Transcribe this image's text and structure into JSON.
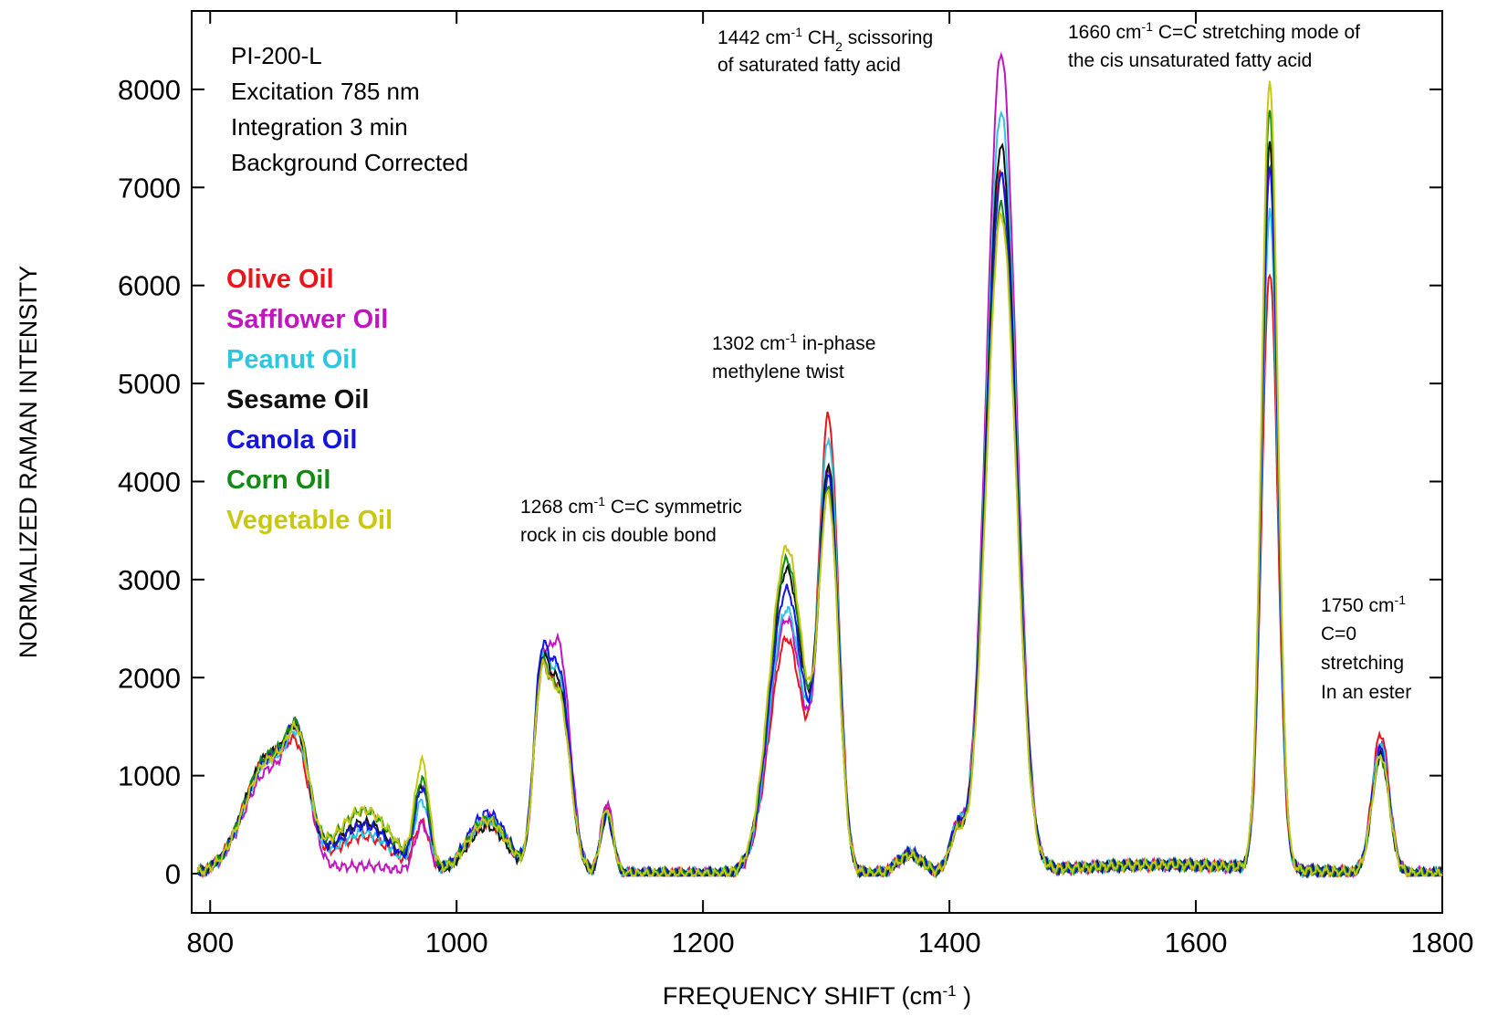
{
  "chart_data": {
    "type": "line",
    "xlabel": "FREQUENCY SHIFT (cm",
    "xlabel_sup": "-1",
    "xlabel_end": " )",
    "ylabel": "NORMALIZED RAMAN INTENSITY",
    "xlim": [
      785,
      1800
    ],
    "ylim": [
      -400,
      8800
    ],
    "xticks": [
      800,
      1000,
      1200,
      1400,
      1600,
      1800
    ],
    "yticks": [
      0,
      1000,
      2000,
      3000,
      4000,
      5000,
      6000,
      7000,
      8000
    ],
    "grid": false,
    "legend_position": "upper-left",
    "info_lines": [
      "PI-200-L",
      "Excitation 785 nm",
      "Integration 3 min",
      "Background Corrected"
    ],
    "annotations": {
      "a1442": {
        "line1_pre": "1442 cm",
        "line1_sup": "-1",
        "line1_mid": " CH",
        "line1_sub": "2",
        "line1_post": " scissoring",
        "line2": "of saturated fatty acid"
      },
      "a1660": {
        "line1_pre": "1660 cm",
        "line1_sup": "-1",
        "line1_post": " C=C stretching mode of",
        "line2": "the cis unsaturated fatty acid"
      },
      "a1302": {
        "line1_pre": "1302 cm",
        "line1_sup": "-1",
        "line1_post": " in-phase",
        "line2": "methylene twist"
      },
      "a1268": {
        "line1_pre": "1268 cm",
        "line1_sup": "-1",
        "line1_post": " C=C symmetric",
        "line2": "rock in cis double bond"
      },
      "a1750": {
        "line1_pre": "1750 cm",
        "line1_sup": "-1",
        "line2": "C=0",
        "line3": "stretching",
        "line4": "In an ester"
      }
    },
    "peak_centers": [
      848,
      872,
      925,
      972,
      1025,
      1068,
      1083,
      1122,
      1268,
      1302,
      1368,
      1406,
      1442,
      1660,
      1750
    ],
    "series": [
      {
        "name": "Olive Oil",
        "color": "#e8151b",
        "values": [
          1200,
          700,
          380,
          480,
          520,
          1550,
          1850,
          700,
          2400,
          4550,
          200,
          400,
          7150,
          6100,
          1420
        ]
      },
      {
        "name": "Safflower Oil",
        "color": "#c016c0",
        "values": [
          1050,
          950,
          80,
          500,
          560,
          1500,
          2300,
          720,
          2600,
          4000,
          180,
          420,
          8350,
          7150,
          1330
        ]
      },
      {
        "name": "Peanut Oil",
        "color": "#2ec5de",
        "values": [
          1150,
          820,
          420,
          700,
          540,
          1620,
          2000,
          600,
          2700,
          4300,
          200,
          430,
          7750,
          6700,
          1300
        ]
      },
      {
        "name": "Sesame Oil",
        "color": "#111111",
        "values": [
          1200,
          850,
          520,
          850,
          480,
          1650,
          1900,
          590,
          3100,
          4000,
          190,
          400,
          7400,
          7380,
          1200
        ]
      },
      {
        "name": "Canola Oil",
        "color": "#1515e0",
        "values": [
          1170,
          900,
          490,
          820,
          620,
          1700,
          2050,
          600,
          2900,
          3900,
          220,
          440,
          7100,
          7150,
          1260
        ]
      },
      {
        "name": "Corn Oil",
        "color": "#138a13",
        "values": [
          1200,
          880,
          640,
          900,
          560,
          1600,
          1820,
          640,
          3200,
          3750,
          190,
          380,
          6800,
          7750,
          1180
        ]
      },
      {
        "name": "Vegetable Oil",
        "color": "#c8c814",
        "values": [
          1150,
          860,
          650,
          1080,
          540,
          1580,
          1800,
          660,
          3330,
          3700,
          185,
          370,
          6700,
          8050,
          1200
        ]
      }
    ]
  }
}
